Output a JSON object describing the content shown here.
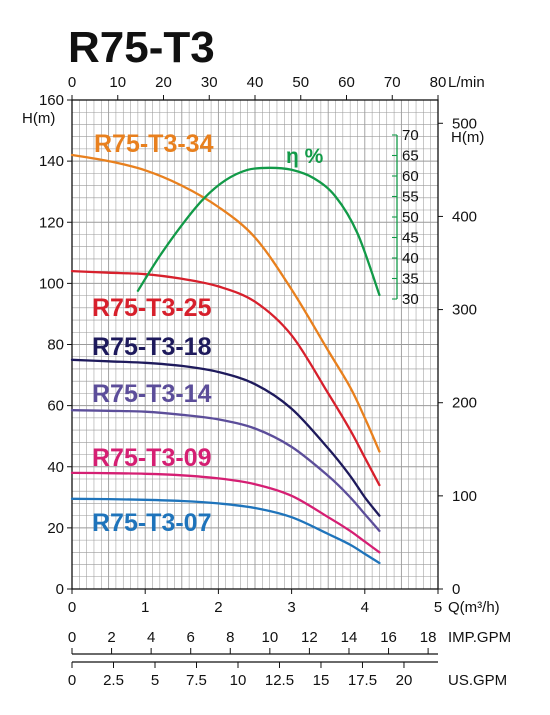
{
  "chart_data": {
    "type": "line",
    "title": "R75-T3",
    "x_bottom": {
      "label": "Q(m³/h)",
      "range": [
        0,
        5
      ],
      "ticks": [
        0,
        1,
        2,
        3,
        4,
        5
      ]
    },
    "x_top": {
      "label": "L/min",
      "range": [
        0,
        80
      ],
      "ticks": [
        0,
        10,
        20,
        30,
        40,
        50,
        60,
        70,
        80
      ]
    },
    "x_imp": {
      "label": "IMP.GPM",
      "ticks": [
        0,
        2,
        4,
        6,
        8,
        10,
        12,
        14,
        16,
        18
      ]
    },
    "x_us": {
      "label": "US.GPM",
      "ticks": [
        0,
        2.5,
        5,
        7.5,
        10,
        12.5,
        15,
        17.5,
        20
      ]
    },
    "y_left": {
      "label": "H(m)",
      "range": [
        0,
        160
      ],
      "ticks": [
        0,
        20,
        40,
        60,
        80,
        100,
        120,
        140,
        160
      ]
    },
    "y_right": {
      "label": "H(m)",
      "range": [
        0,
        525
      ],
      "ticks": [
        0,
        100,
        200,
        300,
        400,
        500
      ]
    },
    "efficiency_axis": {
      "label": "η %",
      "ticks": [
        30,
        35,
        40,
        45,
        50,
        55,
        60,
        65,
        70
      ]
    },
    "grid": true,
    "series": [
      {
        "name": "R75-T3-34",
        "color": "#e8801e",
        "x": [
          0,
          0.5,
          1.0,
          1.5,
          2.0,
          2.5,
          3.0,
          3.5,
          3.8,
          4.0,
          4.2
        ],
        "y": [
          142,
          140,
          137,
          132,
          125,
          115,
          98,
          78,
          66,
          56,
          45
        ]
      },
      {
        "name": "R75-T3-25",
        "color": "#d7202c",
        "x": [
          0,
          0.5,
          1.0,
          1.5,
          2.0,
          2.5,
          3.0,
          3.5,
          3.8,
          4.0,
          4.2
        ],
        "y": [
          104,
          103.5,
          103,
          101.5,
          99,
          94,
          83,
          64,
          52,
          43,
          34
        ]
      },
      {
        "name": "R75-T3-18",
        "color": "#1e1a5c",
        "x": [
          0,
          0.5,
          1.0,
          1.5,
          2.0,
          2.5,
          3.0,
          3.5,
          3.8,
          4.0,
          4.2
        ],
        "y": [
          75,
          74.5,
          74,
          73,
          71,
          67,
          59,
          46,
          37,
          30,
          24
        ]
      },
      {
        "name": "R75-T3-14",
        "color": "#5c4e9a",
        "x": [
          0,
          0.5,
          1.0,
          1.5,
          2.0,
          2.5,
          3.0,
          3.5,
          3.8,
          4.0,
          4.2
        ],
        "y": [
          58.5,
          58.3,
          58,
          57,
          55.5,
          52.5,
          46.5,
          37,
          30,
          24.5,
          19
        ]
      },
      {
        "name": "R75-T3-09",
        "color": "#d51f73",
        "x": [
          0,
          0.5,
          1.0,
          1.5,
          2.0,
          2.5,
          3.0,
          3.5,
          3.8,
          4.0,
          4.2
        ],
        "y": [
          38,
          37.9,
          37.7,
          37.2,
          36.2,
          34.3,
          30.5,
          23.5,
          19,
          15.5,
          12
        ]
      },
      {
        "name": "R75-T3-07",
        "color": "#1f74bb",
        "x": [
          0,
          0.5,
          1.0,
          1.5,
          2.0,
          2.5,
          3.0,
          3.5,
          3.8,
          4.0,
          4.2
        ],
        "y": [
          29.5,
          29.4,
          29.2,
          28.8,
          28,
          26.5,
          23.5,
          18,
          14.5,
          11.5,
          8.5
        ]
      }
    ],
    "efficiency": {
      "name": "η %",
      "color": "#129a48",
      "x": [
        0.9,
        1.2,
        1.5,
        1.8,
        2.1,
        2.4,
        2.7,
        3.0,
        3.3,
        3.6,
        3.9,
        4.2
      ],
      "y": [
        32,
        40.5,
        48,
        54.5,
        59,
        61.5,
        62,
        61.5,
        59.5,
        55,
        46,
        31
      ]
    }
  }
}
